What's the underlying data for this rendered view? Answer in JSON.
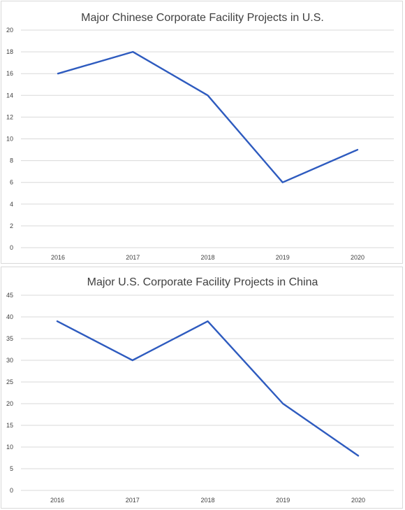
{
  "chart_data": [
    {
      "type": "line",
      "title": "Major Chinese Corporate Facility Projects in U.S.",
      "xlabel": "",
      "ylabel": "",
      "categories": [
        "2016",
        "2017",
        "2018",
        "2019",
        "2020"
      ],
      "series": [
        {
          "values": [
            16,
            18,
            14,
            6,
            9
          ],
          "color": "#2e5bbf"
        }
      ],
      "ylim": [
        0,
        20
      ],
      "yticks": [
        0,
        2,
        4,
        6,
        8,
        10,
        12,
        14,
        16,
        18,
        20
      ],
      "grid": true,
      "legend": "none"
    },
    {
      "type": "line",
      "title": "Major U.S. Corporate Facility Projects in China",
      "xlabel": "",
      "ylabel": "",
      "categories": [
        "2016",
        "2017",
        "2018",
        "2019",
        "2020"
      ],
      "series": [
        {
          "values": [
            39,
            30,
            39,
            20,
            8
          ],
          "color": "#2e5bbf"
        }
      ],
      "ylim": [
        0,
        45
      ],
      "yticks": [
        0,
        5,
        10,
        15,
        20,
        25,
        30,
        35,
        40,
        45
      ],
      "grid": true,
      "legend": "none"
    }
  ]
}
